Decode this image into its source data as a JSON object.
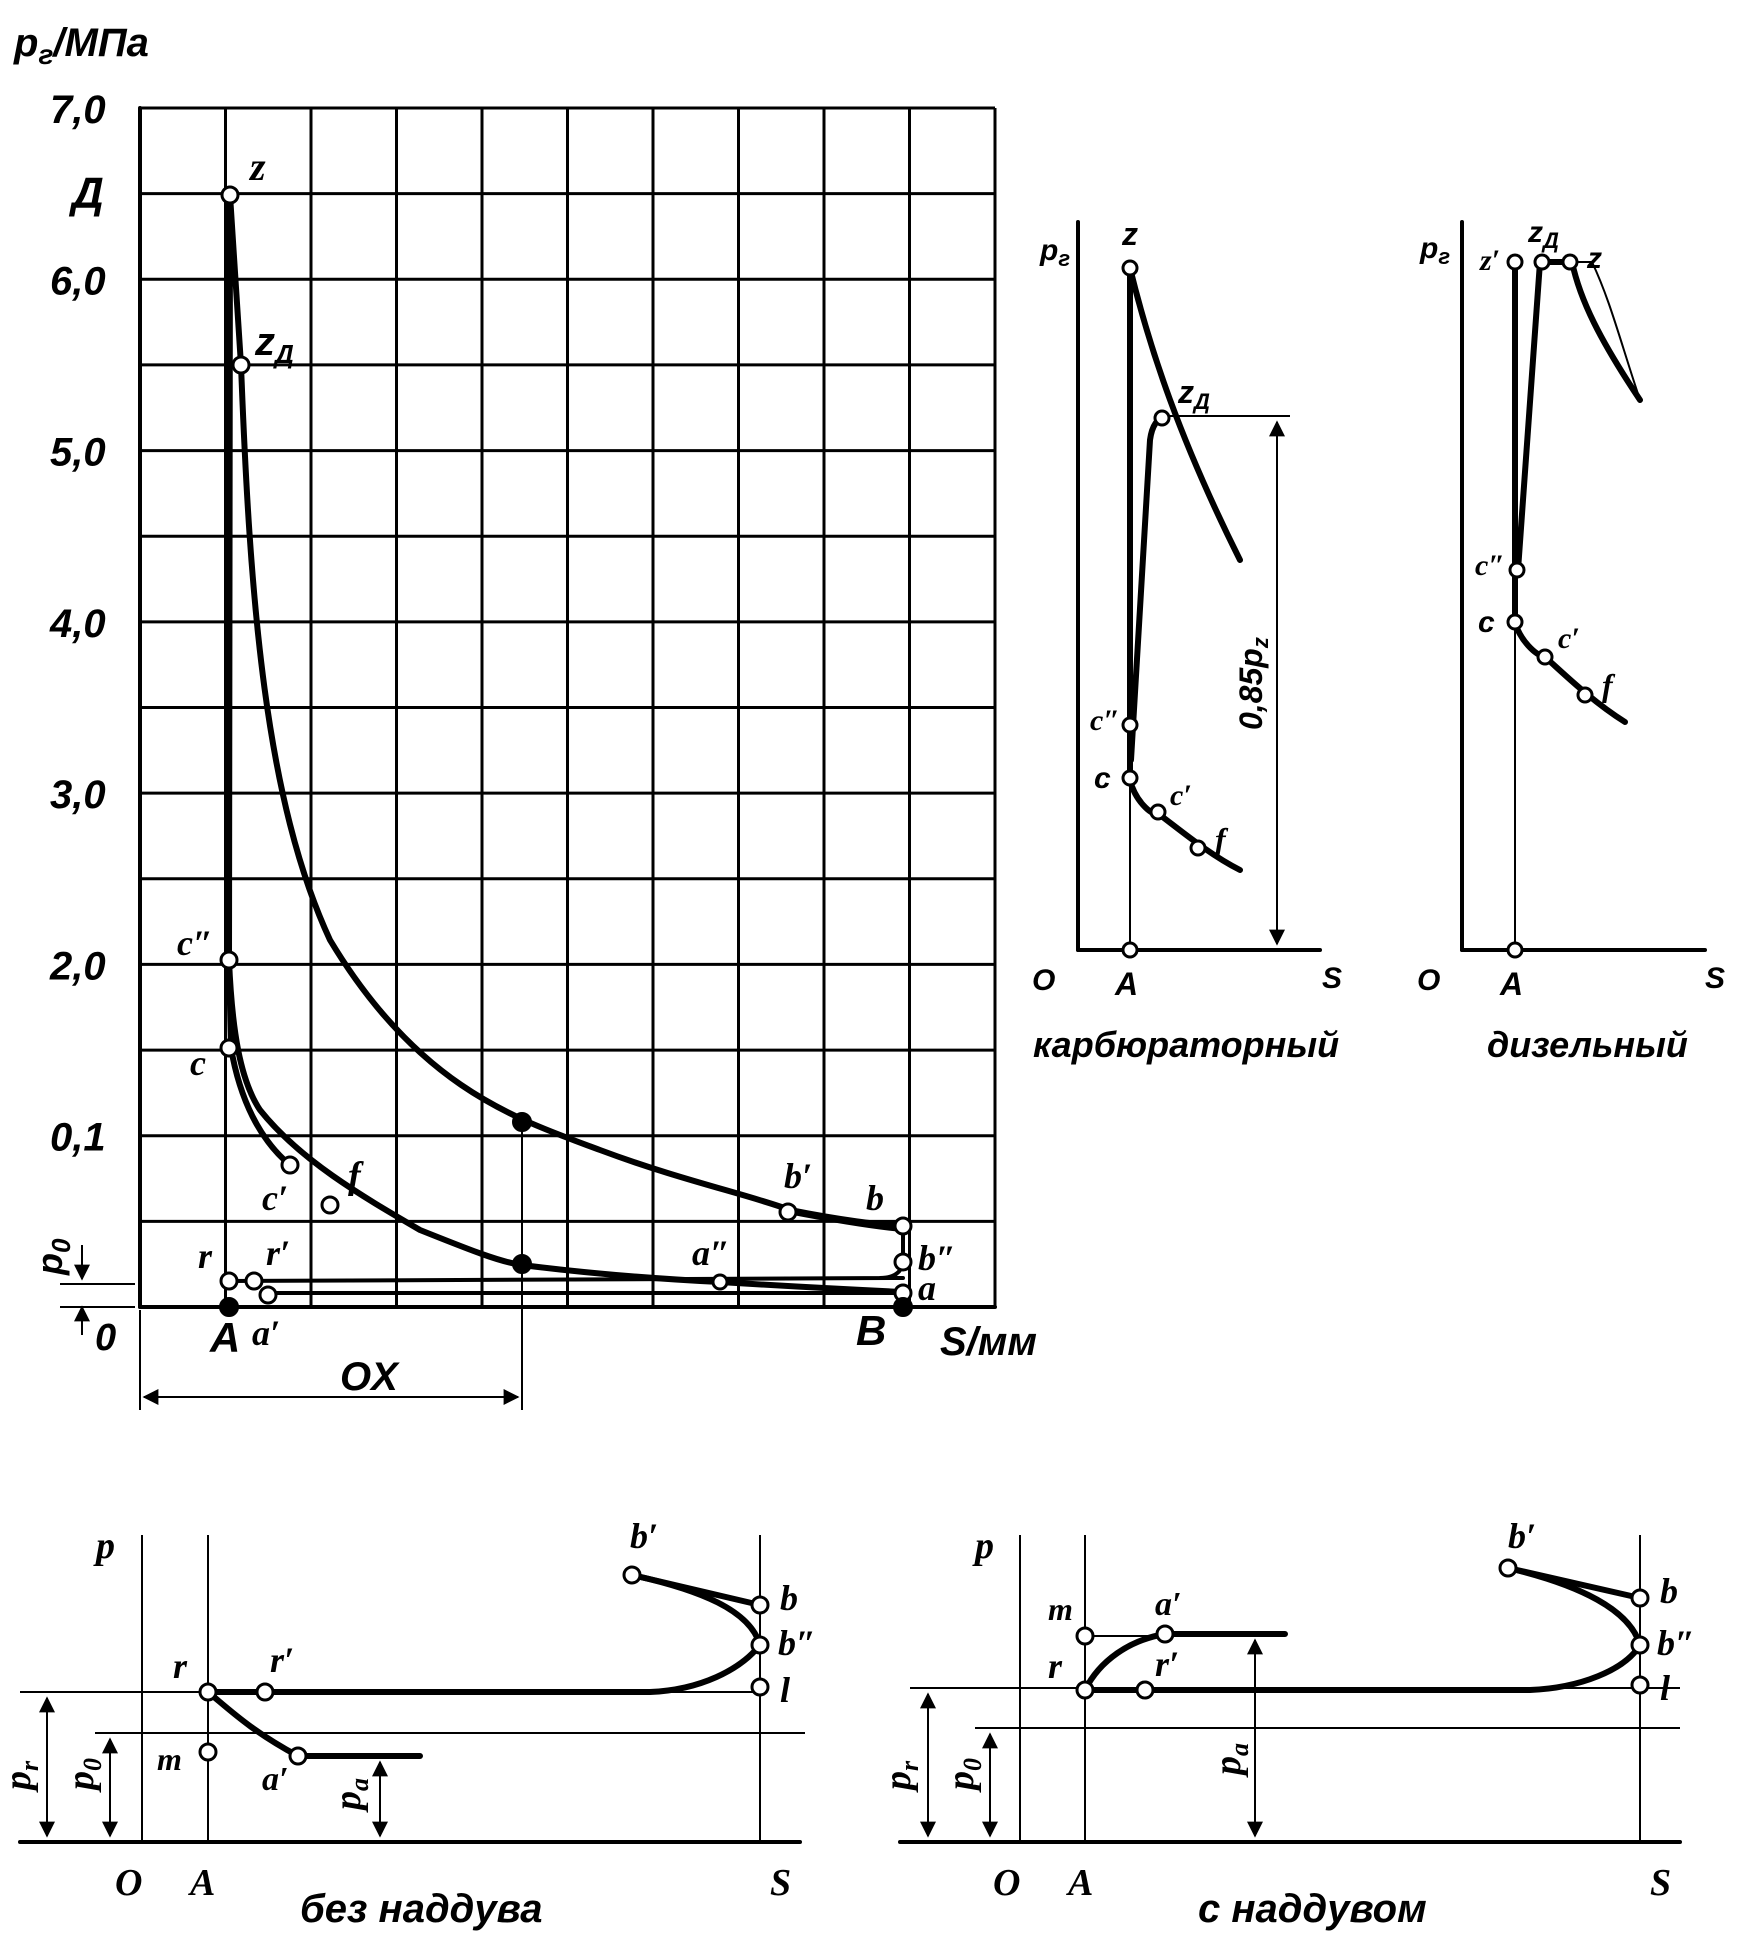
{
  "main": {
    "y_axis_label": "p",
    "y_axis_sub": "г",
    "y_axis_unit": "/МПа",
    "y_ticks": [
      "7,0",
      "6,0",
      "5,0",
      "4,0",
      "3,0",
      "2,0",
      "0,1"
    ],
    "d_label": "Д",
    "x_axis_label": "S/мм",
    "origin": "0",
    "A": "A",
    "B": "B",
    "OX": "OX",
    "p0": "p",
    "p0_sub": "0",
    "points": {
      "z": "z",
      "zd": "z",
      "zd_sub": "Д",
      "c2": "c″",
      "c": "c",
      "c1": "c′",
      "f": "f",
      "b1": "b′",
      "b": "b",
      "b2": "b″",
      "a2": "a″",
      "a": "a",
      "r": "r",
      "r1": "r′",
      "a1": "a′"
    }
  },
  "carb": {
    "y_label": "p",
    "y_sub": "г",
    "z": "z",
    "zd": "z",
    "zd_sub": "Д",
    "c2": "c″",
    "c": "c",
    "c1": "c′",
    "f": "f",
    "O": "O",
    "A": "A",
    "S": "S",
    "dim": "0,85p",
    "dim_sub": "z",
    "caption": "карбюраторный"
  },
  "diesel": {
    "y_label": "p",
    "y_sub": "г",
    "z1": "z′",
    "zd": "z",
    "zd_sub": "Д",
    "z": "z",
    "c2": "c″",
    "c": "c",
    "c1": "c′",
    "f": "f",
    "O": "O",
    "A": "A",
    "S": "S",
    "caption": "дизельный"
  },
  "bottom_left": {
    "p": "p",
    "b1": "b′",
    "b": "b",
    "b2": "b″",
    "l": "l",
    "r": "r",
    "r1": "r′",
    "m": "m",
    "a1": "a′",
    "pr": "p",
    "pr_sub": "r",
    "p0": "p",
    "p0_sub": "0",
    "pa": "p",
    "pa_sub": "a",
    "O": "O",
    "A": "A",
    "S": "S",
    "caption": "без наддува"
  },
  "bottom_right": {
    "p": "p",
    "b1": "b′",
    "b": "b",
    "b2": "b″",
    "l": "l",
    "r": "r",
    "r1": "r′",
    "m": "m",
    "a1": "a′",
    "pr": "p",
    "pr_sub": "r",
    "p0": "p",
    "p0_sub": "0",
    "pa": "p",
    "pa_sub": "a",
    "O": "O",
    "A": "A",
    "S": "S",
    "caption": "с наддувом"
  }
}
